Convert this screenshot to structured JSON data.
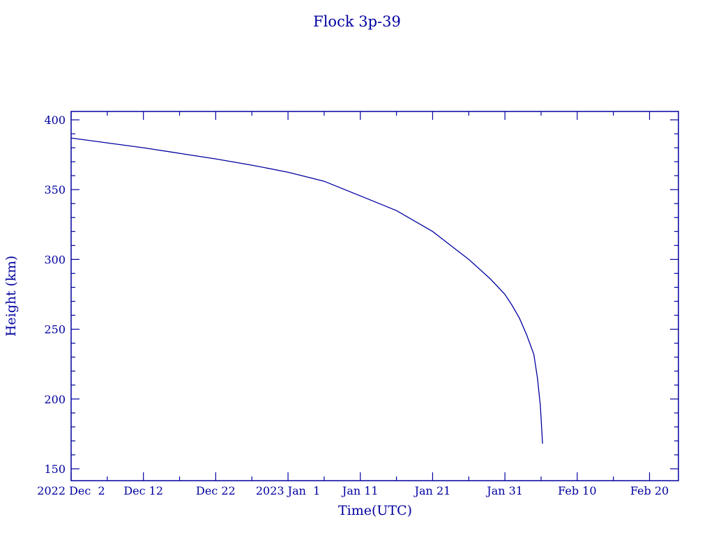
{
  "chart_data": {
    "type": "line",
    "title": "Flock 3p-39",
    "xlabel": "Time(UTC)",
    "ylabel": "Height (km)",
    "x_unit": "days since 2022 Dec 2",
    "xlim": [
      0,
      84
    ],
    "ylim": [
      141.5,
      406
    ],
    "x_ticks": [
      {
        "value": 0,
        "label": "2022 Dec  2"
      },
      {
        "value": 10,
        "label": "Dec 12"
      },
      {
        "value": 20,
        "label": "Dec 22"
      },
      {
        "value": 30,
        "label": "2023 Jan  1"
      },
      {
        "value": 40,
        "label": "Jan 11"
      },
      {
        "value": 50,
        "label": "Jan 21"
      },
      {
        "value": 60,
        "label": "Jan 31"
      },
      {
        "value": 70,
        "label": "Feb 10"
      },
      {
        "value": 80,
        "label": "Feb 20"
      }
    ],
    "x_minor_step": 5,
    "y_ticks": [
      150,
      200,
      250,
      300,
      350,
      400
    ],
    "y_minor_step": 10,
    "grid": false,
    "color": "#0000a0",
    "series": [
      {
        "name": "Height",
        "x": [
          0,
          5,
          10,
          15,
          20,
          25,
          30,
          35,
          40,
          45,
          50,
          55,
          58,
          60,
          61,
          62,
          63,
          64,
          64.5,
          64.9,
          65.2
        ],
        "y": [
          387,
          383.5,
          380,
          376,
          372,
          367.5,
          362.5,
          356,
          345.5,
          335,
          320,
          300,
          286,
          275,
          267,
          258,
          246,
          232,
          215,
          195,
          168
        ]
      }
    ]
  }
}
